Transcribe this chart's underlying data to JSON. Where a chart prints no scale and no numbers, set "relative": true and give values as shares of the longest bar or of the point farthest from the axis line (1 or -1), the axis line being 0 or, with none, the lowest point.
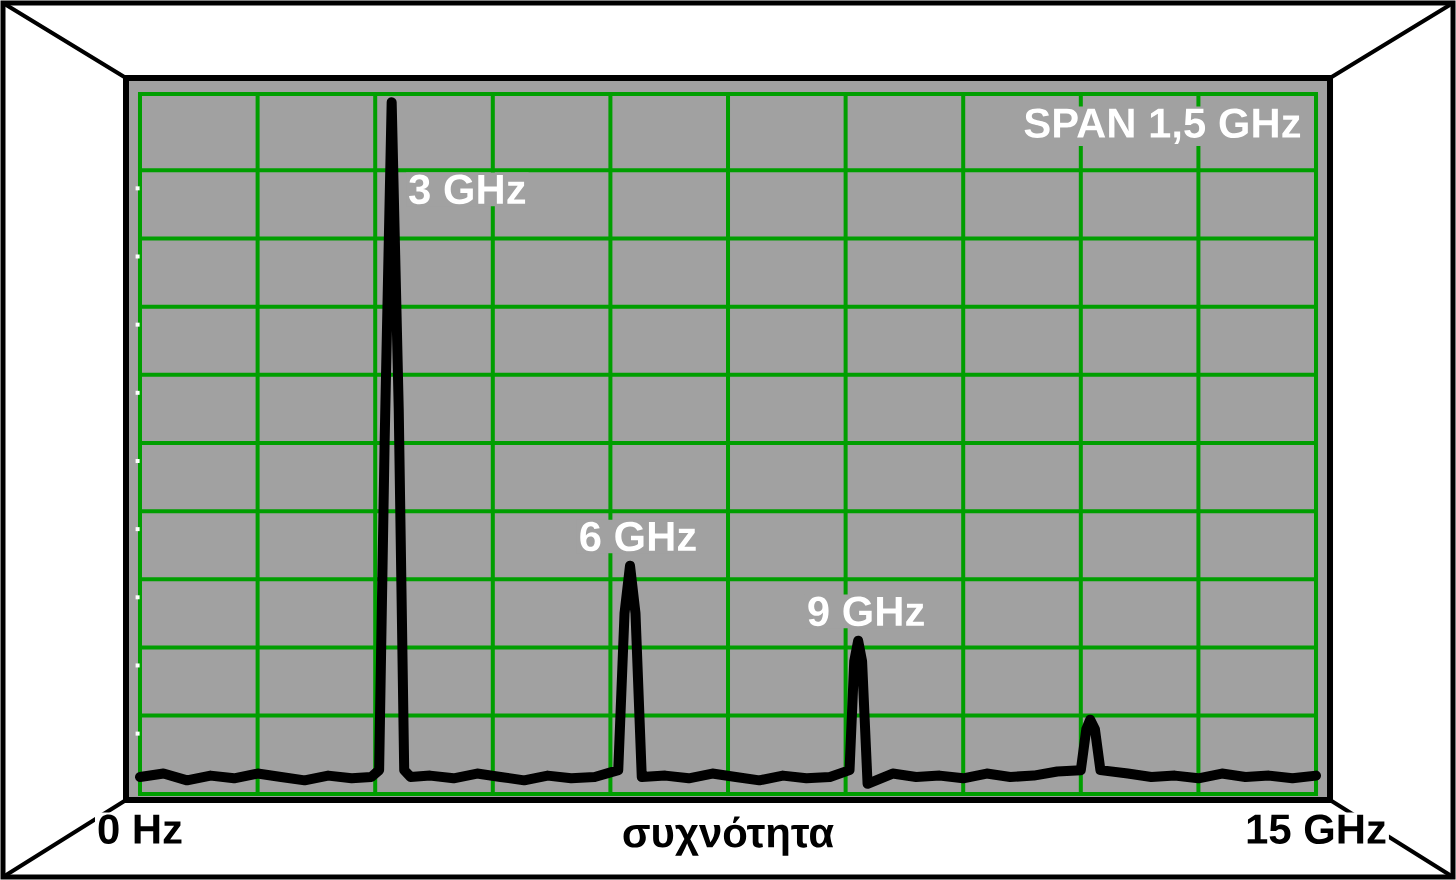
{
  "chart_data": {
    "type": "line",
    "relative": true,
    "xlabel": "συχνότητα",
    "xlim": [
      0,
      15
    ],
    "xticks": [
      {
        "value": 0,
        "label": "0 Hz"
      },
      {
        "value": 1.5,
        "label": null
      },
      {
        "value": 3,
        "label": null
      },
      {
        "value": 4.5,
        "label": null
      },
      {
        "value": 6,
        "label": null
      },
      {
        "value": 7.5,
        "label": null
      },
      {
        "value": 9,
        "label": null
      },
      {
        "value": 10.5,
        "label": null
      },
      {
        "value": 12,
        "label": null
      },
      {
        "value": 13.5,
        "label": null
      },
      {
        "value": 15,
        "label": "15 GHz"
      }
    ],
    "grid": true,
    "marker": "none",
    "line_style": "solid",
    "series": [
      {
        "color": "#000000",
        "x": [
          0,
          0.3,
          0.6,
          0.9,
          1.2,
          1.5,
          1.8,
          2.1,
          2.4,
          2.7,
          2.95,
          3.05,
          3.12,
          3.21,
          3.3,
          3.37,
          3.45,
          3.7,
          4.0,
          4.3,
          4.6,
          4.9,
          5.2,
          5.5,
          5.8,
          6.1,
          6.18,
          6.25,
          6.32,
          6.4,
          6.7,
          7.0,
          7.3,
          7.6,
          7.9,
          8.2,
          8.5,
          8.8,
          9.05,
          9.11,
          9.16,
          9.21,
          9.28,
          9.6,
          9.9,
          10.2,
          10.5,
          10.8,
          11.1,
          11.4,
          11.7,
          12.0,
          12.07,
          12.12,
          12.18,
          12.25,
          12.6,
          12.9,
          13.2,
          13.5,
          13.8,
          14.1,
          14.4,
          14.7,
          15
        ],
        "values": [
          0.01,
          0.015,
          0.005,
          0.012,
          0.008,
          0.015,
          0.01,
          0.005,
          0.012,
          0.008,
          0.01,
          0.02,
          0.5,
          1,
          0.55,
          0.02,
          0.01,
          0.012,
          0.008,
          0.015,
          0.01,
          0.005,
          0.012,
          0.008,
          0.01,
          0.02,
          0.25,
          0.32,
          0.25,
          0.01,
          0.012,
          0.008,
          0.015,
          0.01,
          0.005,
          0.012,
          0.008,
          0.01,
          0.02,
          0.18,
          0.21,
          0.18,
          0,
          0.015,
          0.01,
          0.012,
          0.008,
          0.015,
          0.01,
          0.012,
          0.018,
          0.02,
          0.08,
          0.094,
          0.08,
          0.02,
          0.015,
          0.01,
          0.012,
          0.008,
          0.015,
          0.01,
          0.012,
          0.008,
          0.012
        ]
      }
    ],
    "annotations": [
      {
        "text": "3 GHz",
        "x": 3.21,
        "y": 1
      },
      {
        "text": "6 GHz",
        "x": 6.25,
        "y": 0.32
      },
      {
        "text": "9 GHz",
        "x": 9.16,
        "y": 0.21
      },
      "SPAN 1,5 GHz"
    ]
  }
}
